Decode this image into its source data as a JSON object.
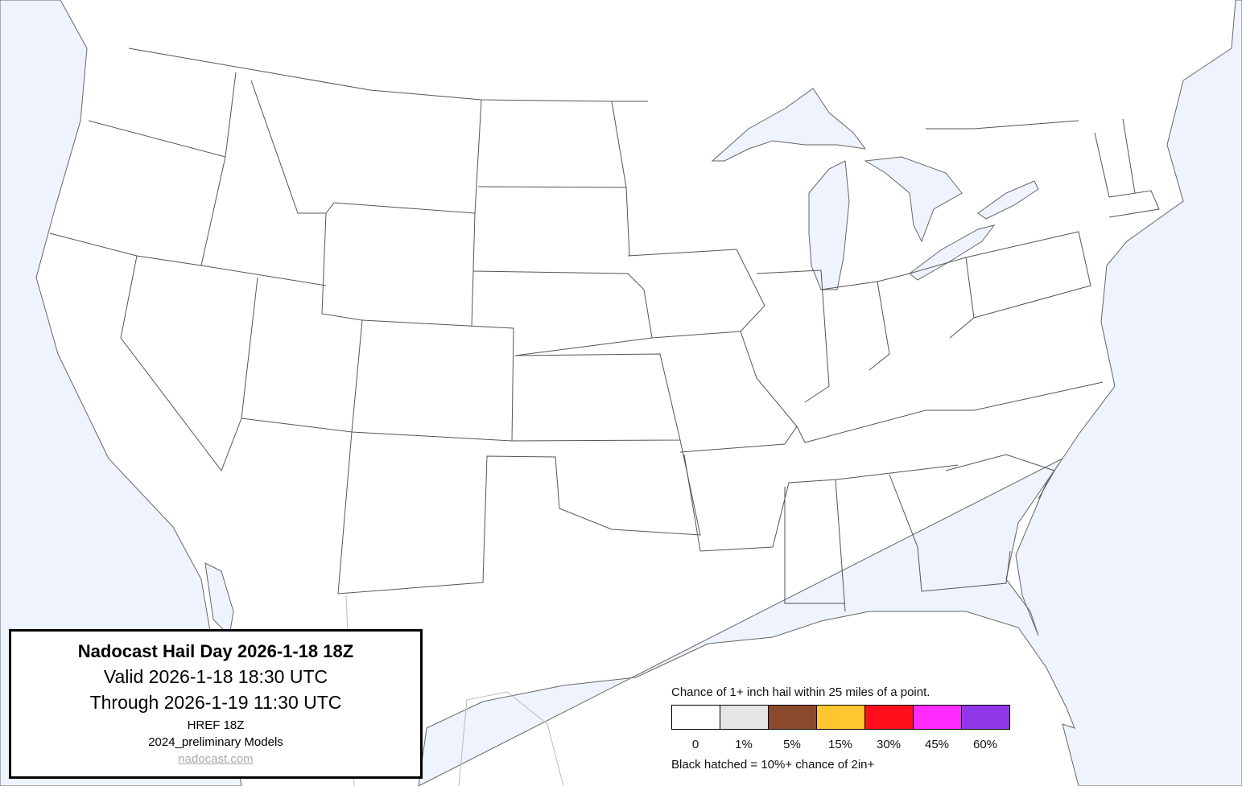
{
  "colors": {
    "ocean": "#eef3fd",
    "land": "#ffffff",
    "border": "#555555"
  },
  "info": {
    "title": "Nadocast Hail Day 2026-1-18 18Z",
    "valid": "Valid 2026-1-18 18:30 UTC",
    "through": "Through 2026-1-19 11:30 UTC",
    "model": "HREF 18Z",
    "models_version": "2024_preliminary Models",
    "link": "nadocast.com"
  },
  "legend": {
    "title": "Chance of 1+ inch hail within 25 miles of a point.",
    "bins": [
      {
        "label": "0",
        "color": "#ffffff"
      },
      {
        "label": "1%",
        "color": "#e5e5e5"
      },
      {
        "label": "5%",
        "color": "#8b4a2b"
      },
      {
        "label": "15%",
        "color": "#ffc630"
      },
      {
        "label": "30%",
        "color": "#ff0e1c"
      },
      {
        "label": "45%",
        "color": "#ff2aff"
      },
      {
        "label": "60%",
        "color": "#9038e8"
      }
    ],
    "note": "Black hatched = 10%+ chance of 2in+"
  }
}
